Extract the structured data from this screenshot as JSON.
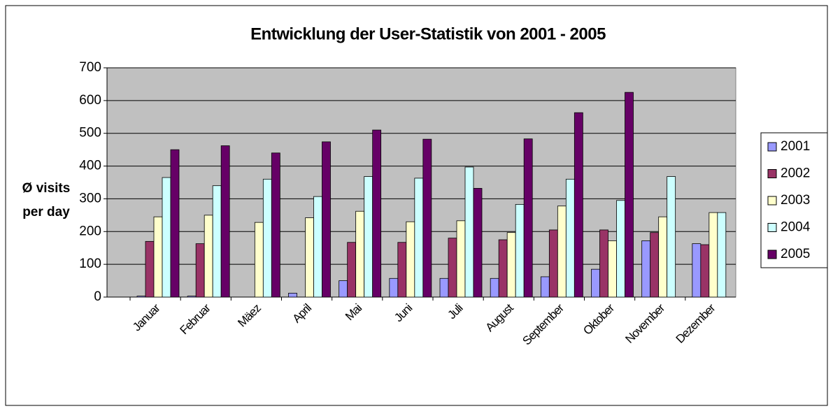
{
  "chart_data": {
    "type": "bar",
    "title": "Entwicklung der User-Statistik von 2001 - 2005",
    "y_label": [
      "Ø visits",
      "per day"
    ],
    "categories": [
      "Januar",
      "Februar",
      "Mäez",
      "April",
      "Mai",
      "Juni",
      "Juli",
      "August",
      "September",
      "Oktober",
      "November",
      "Dezember"
    ],
    "series": [
      {
        "name": "2001",
        "color": "#9999ff",
        "values": [
          3,
          3,
          null,
          12,
          50,
          57,
          57,
          57,
          62,
          85,
          172,
          163
        ]
      },
      {
        "name": "2002",
        "color": "#993366",
        "values": [
          170,
          163,
          null,
          null,
          167,
          167,
          180,
          175,
          205,
          205,
          197,
          160
        ]
      },
      {
        "name": "2003",
        "color": "#ffffcc",
        "values": [
          245,
          250,
          228,
          242,
          262,
          230,
          233,
          197,
          278,
          172,
          245,
          258
        ]
      },
      {
        "name": "2004",
        "color": "#ccffff",
        "values": [
          365,
          340,
          360,
          307,
          368,
          363,
          397,
          283,
          360,
          295,
          368,
          258
        ]
      },
      {
        "name": "2005",
        "color": "#660066",
        "values": [
          450,
          462,
          440,
          474,
          510,
          482,
          332,
          483,
          563,
          625,
          null,
          null
        ]
      }
    ],
    "ylim": [
      0,
      700
    ],
    "yticks": [
      0,
      100,
      200,
      300,
      400,
      500,
      600,
      700
    ],
    "grid": true,
    "legend": "right",
    "plot_background": "#c0c0c0"
  }
}
